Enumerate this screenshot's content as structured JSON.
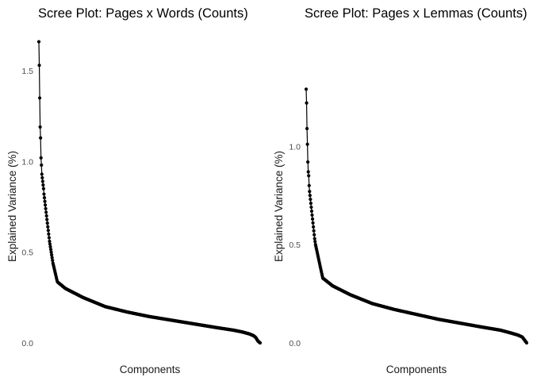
{
  "chart_data": [
    {
      "type": "line",
      "title": "Scree Plot: Pages x Words (Counts)",
      "xlabel": "Components",
      "ylabel": "Explained Variance (%)",
      "ylim": [
        0,
        1.68
      ],
      "yticks": [
        0.0,
        0.5,
        1.0,
        1.5
      ],
      "ytick_labels": [
        "0.0",
        "0.5",
        "1.0",
        "1.5"
      ],
      "x_ticks_shown": false,
      "grid": false,
      "legend": "none",
      "line_color": "#000000",
      "series": [
        {
          "n_components": 520,
          "values": [
            1.66,
            1.53,
            1.35,
            1.19,
            1.13,
            1.02,
            0.98,
            0.93,
            0.91,
            0.89,
            0.87,
            0.85,
            0.82,
            0.8,
            0.78,
            0.76,
            0.74,
            0.72,
            0.7,
            0.68,
            0.66,
            0.64,
            0.62,
            0.6,
            0.58,
            0.56,
            0.545,
            0.53,
            0.515,
            0.5,
            0.485,
            0.47,
            0.455,
            0.44,
            0.43,
            0.42,
            0.41,
            0.4,
            0.39,
            0.38,
            0.37,
            0.36,
            0.35,
            0.34
          ],
          "tail": [
            [
              0.08,
              0.34
            ],
            [
              0.12,
              0.3
            ],
            [
              0.2,
              0.25
            ],
            [
              0.3,
              0.2
            ],
            [
              0.4,
              0.17
            ],
            [
              0.5,
              0.145
            ],
            [
              0.6,
              0.125
            ],
            [
              0.7,
              0.105
            ],
            [
              0.8,
              0.085
            ],
            [
              0.88,
              0.07
            ],
            [
              0.92,
              0.06
            ],
            [
              0.95,
              0.05
            ],
            [
              0.97,
              0.04
            ],
            [
              0.98,
              0.03
            ],
            [
              0.99,
              0.01
            ],
            [
              1.0,
              0.0
            ]
          ]
        }
      ]
    },
    {
      "type": "line",
      "title": "Scree Plot: Pages x Lemmas (Counts)",
      "xlabel": "Components",
      "ylabel": "Explained Variance (%)",
      "ylim": [
        0,
        1.55
      ],
      "yticks": [
        0.0,
        0.5,
        1.0
      ],
      "ytick_labels": [
        "0.0",
        "0.5",
        "1.0"
      ],
      "x_ticks_shown": false,
      "grid": false,
      "legend": "none",
      "line_color": "#000000",
      "series": [
        {
          "n_components": 520,
          "values": [
            1.29,
            1.22,
            1.09,
            1.01,
            0.92,
            0.87,
            0.85,
            0.8,
            0.77,
            0.75,
            0.73,
            0.71,
            0.69,
            0.67,
            0.65,
            0.63,
            0.61,
            0.59,
            0.57,
            0.55,
            0.53,
            0.515,
            0.5,
            0.49,
            0.48,
            0.47,
            0.46,
            0.45,
            0.44,
            0.43,
            0.42,
            0.41,
            0.4,
            0.39,
            0.38,
            0.37,
            0.36,
            0.35,
            0.34,
            0.33
          ],
          "tail": [
            [
              0.075,
              0.33
            ],
            [
              0.12,
              0.29
            ],
            [
              0.2,
              0.245
            ],
            [
              0.3,
              0.2
            ],
            [
              0.4,
              0.17
            ],
            [
              0.5,
              0.145
            ],
            [
              0.6,
              0.12
            ],
            [
              0.7,
              0.1
            ],
            [
              0.8,
              0.08
            ],
            [
              0.88,
              0.065
            ],
            [
              0.93,
              0.05
            ],
            [
              0.96,
              0.04
            ],
            [
              0.98,
              0.03
            ],
            [
              0.99,
              0.015
            ],
            [
              1.0,
              0.0
            ]
          ]
        }
      ]
    }
  ]
}
